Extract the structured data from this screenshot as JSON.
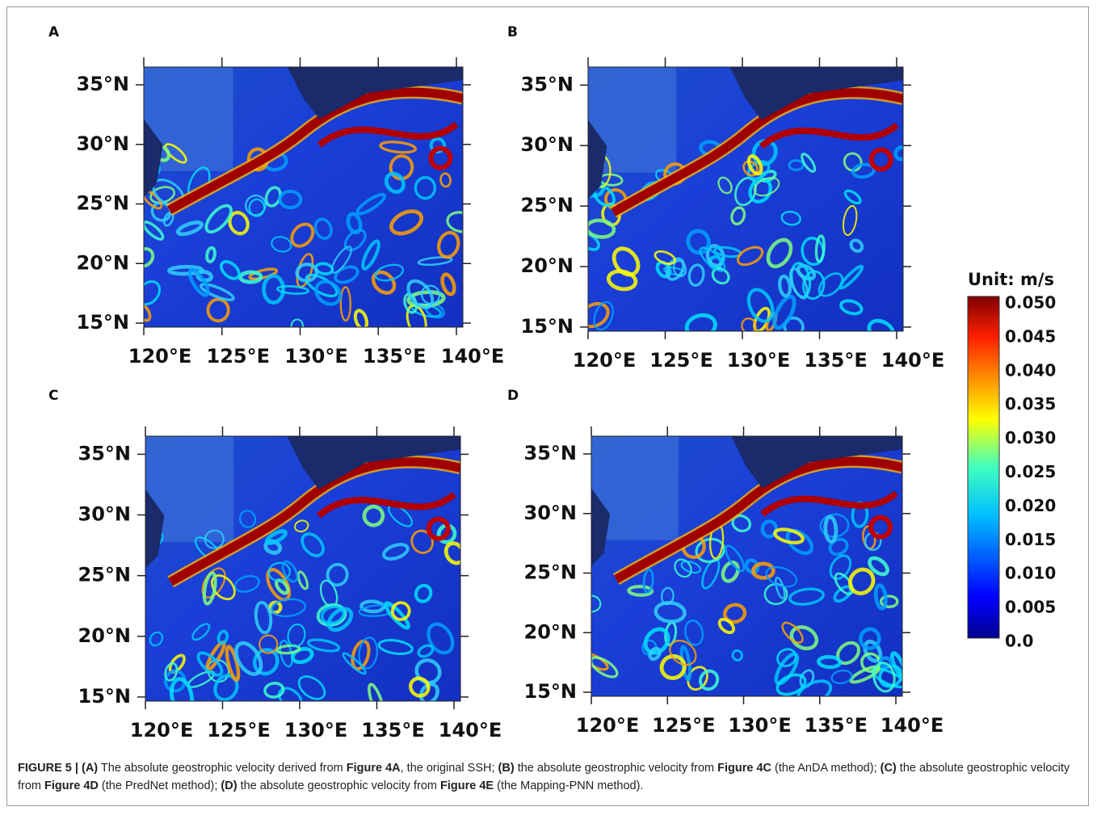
{
  "figure": {
    "panels": [
      {
        "label": "A",
        "lat_labels": [
          "35°N",
          "30°N",
          "25°N",
          "20°N",
          "15°N"
        ],
        "lon_labels": [
          "120°E",
          "125°E",
          "130°E",
          "135°E",
          "140°E"
        ]
      },
      {
        "label": "B",
        "lat_labels": [
          "35°N",
          "30°N",
          "25°N",
          "20°N",
          "15°N"
        ],
        "lon_labels": [
          "120°E",
          "125°E",
          "130°E",
          "135°E",
          "140°E"
        ]
      },
      {
        "label": "C",
        "lat_labels": [
          "35°N",
          "30°N",
          "25°N",
          "20°N",
          "15°N"
        ],
        "lon_labels": [
          "120°E",
          "125°E",
          "130°E",
          "135°E",
          "140°E"
        ]
      },
      {
        "label": "D",
        "lat_labels": [
          "35°N",
          "30°N",
          "25°N",
          "20°N",
          "15°N"
        ],
        "lon_labels": [
          "120°E",
          "125°E",
          "130°E",
          "135°E",
          "140°E"
        ]
      }
    ],
    "colorbar": {
      "title": "Unit: m/s",
      "labels": [
        "0.050",
        "0.045",
        "0.040",
        "0.035",
        "0.030",
        "0.025",
        "0.020",
        "0.015",
        "0.010",
        "0.005",
        "0.0"
      ]
    },
    "caption": [
      {
        "text": "FIGURE 5 | (A)",
        "bold": true
      },
      {
        "text": " The absolute geostrophic velocity derived from ",
        "bold": false
      },
      {
        "text": "Figure 4A",
        "bold": true
      },
      {
        "text": ", the original SSH; ",
        "bold": false
      },
      {
        "text": "(B)",
        "bold": true
      },
      {
        "text": " the absolute geostrophic velocity from ",
        "bold": false
      },
      {
        "text": "Figure 4C",
        "bold": true
      },
      {
        "text": " (the AnDA method); ",
        "bold": false
      },
      {
        "text": "(C)",
        "bold": true
      },
      {
        "text": " the absolute geostrophic velocity from ",
        "bold": false
      },
      {
        "text": "Figure 4D",
        "bold": true
      },
      {
        "text": " (the PredNet method); ",
        "bold": false
      },
      {
        "text": "(D)",
        "bold": true
      },
      {
        "text": " the absolute geostrophic velocity from ",
        "bold": false
      },
      {
        "text": "Figure 4E",
        "bold": true
      },
      {
        "text": " (the Mapping-PNN method).",
        "bold": false
      }
    ]
  }
}
